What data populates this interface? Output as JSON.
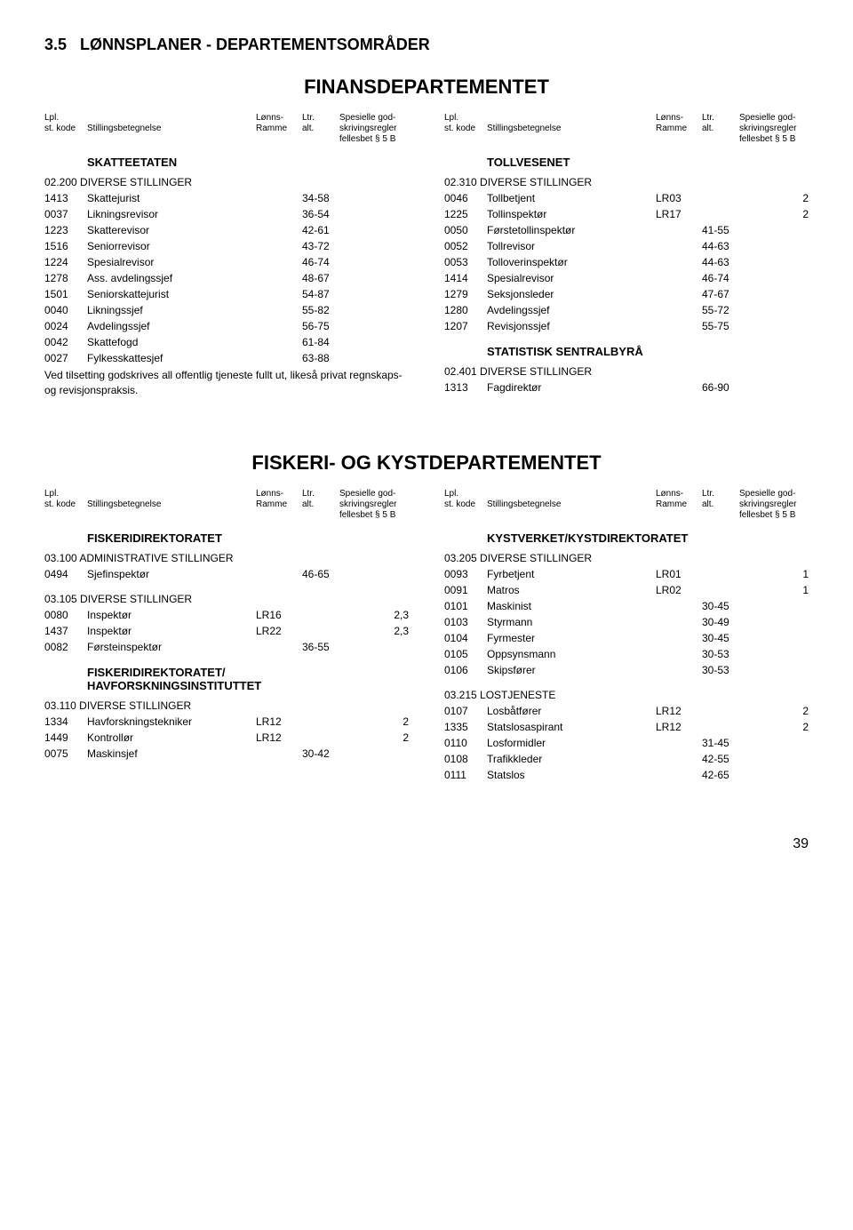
{
  "section_number": "3.5",
  "section_title": "LØNNSPLANER - DEPARTEMENTSOMRÅDER",
  "page_number": "39",
  "col_headers": {
    "lpl": "Lpl.",
    "stkode": "st. kode",
    "stilling": "Stillingsbetegnelse",
    "lonns": "Lønns-",
    "ramme": "Ramme",
    "ltr": "Ltr.",
    "alt": "alt.",
    "spes1": "Spesielle god-",
    "spes2": "skrivingsregler",
    "spes3": "fellesbet § 5 B"
  },
  "dept1": {
    "title": "FINANSDEPARTEMENTET",
    "left": {
      "sub1": "SKATTEETATEN",
      "group1_title": "02.200 DIVERSE STILLINGER",
      "rows1": [
        {
          "code": "1413",
          "desc": "Skattejurist",
          "ramme": "",
          "alt": "34-58",
          "spes": ""
        },
        {
          "code": "0037",
          "desc": "Likningsrevisor",
          "ramme": "",
          "alt": "36-54",
          "spes": ""
        },
        {
          "code": "1223",
          "desc": "Skatterevisor",
          "ramme": "",
          "alt": "42-61",
          "spes": ""
        },
        {
          "code": "1516",
          "desc": "Seniorrevisor",
          "ramme": "",
          "alt": "43-72",
          "spes": ""
        },
        {
          "code": "1224",
          "desc": "Spesialrevisor",
          "ramme": "",
          "alt": "46-74",
          "spes": ""
        },
        {
          "code": "1278",
          "desc": "Ass. avdelingssjef",
          "ramme": "",
          "alt": "48-67",
          "spes": ""
        },
        {
          "code": "1501",
          "desc": "Seniorskattejurist",
          "ramme": "",
          "alt": "54-87",
          "spes": ""
        },
        {
          "code": "0040",
          "desc": "Likningssjef",
          "ramme": "",
          "alt": "55-82",
          "spes": ""
        },
        {
          "code": "0024",
          "desc": "Avdelingssjef",
          "ramme": "",
          "alt": "56-75",
          "spes": ""
        },
        {
          "code": "0042",
          "desc": "Skattefogd",
          "ramme": "",
          "alt": "61-84",
          "spes": ""
        },
        {
          "code": "0027",
          "desc": "Fylkesskattesjef",
          "ramme": "",
          "alt": "63-88",
          "spes": ""
        }
      ],
      "note": "Ved tilsetting godskrives all offentlig tjeneste fullt ut, likeså privat regnskaps- og revisjonspraksis."
    },
    "right": {
      "sub1": "TOLLVESENET",
      "group1_title": "02.310 DIVERSE STILLINGER",
      "rows1": [
        {
          "code": "0046",
          "desc": "Tollbetjent",
          "ramme": "LR03",
          "alt": "",
          "spes": "2"
        },
        {
          "code": "1225",
          "desc": "Tollinspektør",
          "ramme": "LR17",
          "alt": "",
          "spes": "2"
        },
        {
          "code": "0050",
          "desc": "Førstetollinspektør",
          "ramme": "",
          "alt": "41-55",
          "spes": ""
        },
        {
          "code": "0052",
          "desc": "Tollrevisor",
          "ramme": "",
          "alt": "44-63",
          "spes": ""
        },
        {
          "code": "0053",
          "desc": "Tolloverinspektør",
          "ramme": "",
          "alt": "44-63",
          "spes": ""
        },
        {
          "code": "1414",
          "desc": "Spesialrevisor",
          "ramme": "",
          "alt": "46-74",
          "spes": ""
        },
        {
          "code": "1279",
          "desc": "Seksjonsleder",
          "ramme": "",
          "alt": "47-67",
          "spes": ""
        },
        {
          "code": "1280",
          "desc": "Avdelingssjef",
          "ramme": "",
          "alt": "55-72",
          "spes": ""
        },
        {
          "code": "1207",
          "desc": "Revisjonssjef",
          "ramme": "",
          "alt": "55-75",
          "spes": ""
        }
      ],
      "sub2": "STATISTISK SENTRALBYRÅ",
      "group2_title": "02.401 DIVERSE STILLINGER",
      "rows2": [
        {
          "code": "1313",
          "desc": "Fagdirektør",
          "ramme": "",
          "alt": "66-90",
          "spes": ""
        }
      ]
    }
  },
  "dept2": {
    "title": "FISKERI- OG KYSTDEPARTEMENTET",
    "left": {
      "sub1": "FISKERIDIREKTORATET",
      "group1_title": "03.100 ADMINISTRATIVE STILLINGER",
      "rows1": [
        {
          "code": "0494",
          "desc": "Sjefinspektør",
          "ramme": "",
          "alt": "46-65",
          "spes": ""
        }
      ],
      "group2_title": "03.105 DIVERSE STILLINGER",
      "rows2": [
        {
          "code": "0080",
          "desc": "Inspektør",
          "ramme": "LR16",
          "alt": "",
          "spes": "2,3"
        },
        {
          "code": "1437",
          "desc": "Inspektør",
          "ramme": "LR22",
          "alt": "",
          "spes": "2,3"
        },
        {
          "code": "0082",
          "desc": "Førsteinspektør",
          "ramme": "",
          "alt": "36-55",
          "spes": ""
        }
      ],
      "sub2": "FISKERIDIREKTORATET/\nHAVFORSKNINGSINSTITUTTET",
      "group3_title": "03.110 DIVERSE STILLINGER",
      "rows3": [
        {
          "code": "1334",
          "desc": "Havforskningstekniker",
          "ramme": "LR12",
          "alt": "",
          "spes": "2"
        },
        {
          "code": "1449",
          "desc": "Kontrollør",
          "ramme": "LR12",
          "alt": "",
          "spes": "2"
        },
        {
          "code": "0075",
          "desc": "Maskinsjef",
          "ramme": "",
          "alt": "30-42",
          "spes": ""
        }
      ]
    },
    "right": {
      "sub1": "KYSTVERKET/KYSTDIREKTORATET",
      "group1_title": "03.205 DIVERSE STILLINGER",
      "rows1": [
        {
          "code": "0093",
          "desc": "Fyrbetjent",
          "ramme": "LR01",
          "alt": "",
          "spes": "1"
        },
        {
          "code": "0091",
          "desc": "Matros",
          "ramme": "LR02",
          "alt": "",
          "spes": "1"
        },
        {
          "code": "0101",
          "desc": "Maskinist",
          "ramme": "",
          "alt": "30-45",
          "spes": ""
        },
        {
          "code": "0103",
          "desc": "Styrmann",
          "ramme": "",
          "alt": "30-49",
          "spes": ""
        },
        {
          "code": "0104",
          "desc": "Fyrmester",
          "ramme": "",
          "alt": "30-45",
          "spes": ""
        },
        {
          "code": "0105",
          "desc": "Oppsynsmann",
          "ramme": "",
          "alt": "30-53",
          "spes": ""
        },
        {
          "code": "0106",
          "desc": "Skipsfører",
          "ramme": "",
          "alt": "30-53",
          "spes": ""
        }
      ],
      "group2_title": "03.215 LOSTJENESTE",
      "rows2": [
        {
          "code": "0107",
          "desc": "Losbåtfører",
          "ramme": "LR12",
          "alt": "",
          "spes": "2"
        },
        {
          "code": "1335",
          "desc": "Statslosaspirant",
          "ramme": "LR12",
          "alt": "",
          "spes": "2"
        },
        {
          "code": "0110",
          "desc": "Losformidler",
          "ramme": "",
          "alt": "31-45",
          "spes": ""
        },
        {
          "code": "0108",
          "desc": "Trafikkleder",
          "ramme": "",
          "alt": "42-55",
          "spes": ""
        },
        {
          "code": "0111",
          "desc": "Statslos",
          "ramme": "",
          "alt": "42-65",
          "spes": ""
        }
      ]
    }
  }
}
